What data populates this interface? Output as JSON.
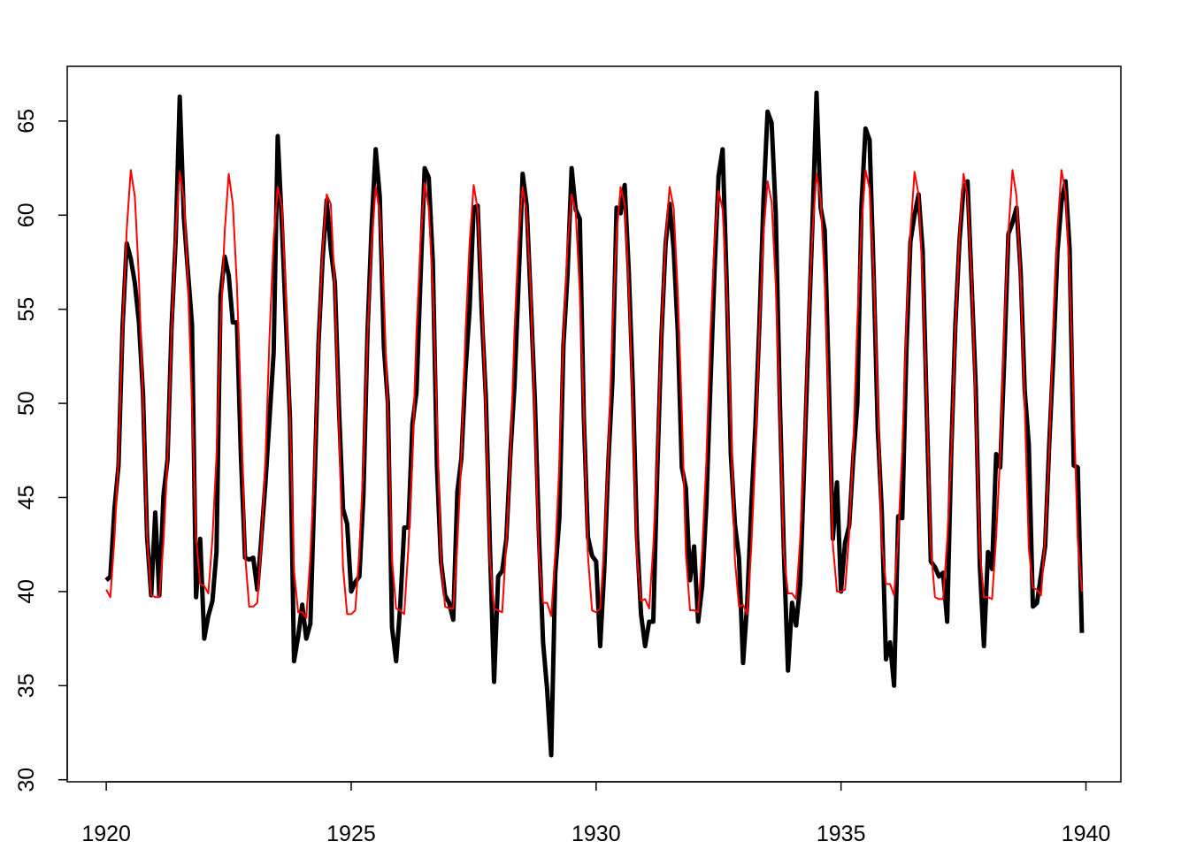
{
  "chart_data": {
    "type": "line",
    "x": [
      1920,
      1920.083,
      1920.167,
      1920.25,
      1920.333,
      1920.417,
      1920.5,
      1920.583,
      1920.667,
      1920.75,
      1920.833,
      1920.917,
      1921,
      1921.083,
      1921.167,
      1921.25,
      1921.333,
      1921.417,
      1921.5,
      1921.583,
      1921.667,
      1921.75,
      1921.833,
      1921.917,
      1922,
      1922.083,
      1922.167,
      1922.25,
      1922.333,
      1922.417,
      1922.5,
      1922.583,
      1922.667,
      1922.75,
      1922.833,
      1922.917,
      1923,
      1923.083,
      1923.167,
      1923.25,
      1923.333,
      1923.417,
      1923.5,
      1923.583,
      1923.667,
      1923.75,
      1923.833,
      1923.917,
      1924,
      1924.083,
      1924.167,
      1924.25,
      1924.333,
      1924.417,
      1924.5,
      1924.583,
      1924.667,
      1924.75,
      1924.833,
      1924.917,
      1925,
      1925.083,
      1925.167,
      1925.25,
      1925.333,
      1925.417,
      1925.5,
      1925.583,
      1925.667,
      1925.75,
      1925.833,
      1925.917,
      1926,
      1926.083,
      1926.167,
      1926.25,
      1926.333,
      1926.417,
      1926.5,
      1926.583,
      1926.667,
      1926.75,
      1926.833,
      1926.917,
      1927,
      1927.083,
      1927.167,
      1927.25,
      1927.333,
      1927.417,
      1927.5,
      1927.583,
      1927.667,
      1927.75,
      1927.833,
      1927.917,
      1928,
      1928.083,
      1928.167,
      1928.25,
      1928.333,
      1928.417,
      1928.5,
      1928.583,
      1928.667,
      1928.75,
      1928.833,
      1928.917,
      1929,
      1929.083,
      1929.167,
      1929.25,
      1929.333,
      1929.417,
      1929.5,
      1929.583,
      1929.667,
      1929.75,
      1929.833,
      1929.917,
      1930,
      1930.083,
      1930.167,
      1930.25,
      1930.333,
      1930.417,
      1930.5,
      1930.583,
      1930.667,
      1930.75,
      1930.833,
      1930.917,
      1931,
      1931.083,
      1931.167,
      1931.25,
      1931.333,
      1931.417,
      1931.5,
      1931.583,
      1931.667,
      1931.75,
      1931.833,
      1931.917,
      1932,
      1932.083,
      1932.167,
      1932.25,
      1932.333,
      1932.417,
      1932.5,
      1932.583,
      1932.667,
      1932.75,
      1932.833,
      1932.917,
      1933,
      1933.083,
      1933.167,
      1933.25,
      1933.333,
      1933.417,
      1933.5,
      1933.583,
      1933.667,
      1933.75,
      1933.833,
      1933.917,
      1934,
      1934.083,
      1934.167,
      1934.25,
      1934.333,
      1934.417,
      1934.5,
      1934.583,
      1934.667,
      1934.75,
      1934.833,
      1934.917,
      1935,
      1935.083,
      1935.167,
      1935.25,
      1935.333,
      1935.417,
      1935.5,
      1935.583,
      1935.667,
      1935.75,
      1935.833,
      1935.917,
      1936,
      1936.083,
      1936.167,
      1936.25,
      1936.333,
      1936.417,
      1936.5,
      1936.583,
      1936.667,
      1936.75,
      1936.833,
      1936.917,
      1937,
      1937.083,
      1937.167,
      1937.25,
      1937.333,
      1937.417,
      1937.5,
      1937.583,
      1937.667,
      1937.75,
      1937.833,
      1937.917,
      1938,
      1938.083,
      1938.167,
      1938.25,
      1938.333,
      1938.417,
      1938.5,
      1938.583,
      1938.667,
      1938.75,
      1938.833,
      1938.917,
      1939,
      1939.083,
      1939.167,
      1939.25,
      1939.333,
      1939.417,
      1939.5,
      1939.583,
      1939.667,
      1939.75,
      1939.833,
      1939.917
    ],
    "series": [
      {
        "color": "#000000",
        "width": 5,
        "values": [
          40.6,
          40.8,
          44.4,
          46.7,
          54.1,
          58.5,
          57.7,
          56.4,
          54.3,
          50.5,
          42.9,
          39.8,
          44.2,
          39.8,
          45.1,
          47.0,
          54.1,
          58.7,
          66.3,
          59.9,
          57.0,
          54.2,
          39.7,
          42.8,
          37.5,
          38.7,
          39.5,
          42.1,
          55.7,
          57.8,
          56.8,
          54.3,
          54.3,
          47.1,
          41.8,
          41.7,
          41.8,
          40.1,
          42.9,
          45.8,
          49.2,
          52.7,
          64.2,
          59.6,
          54.4,
          49.2,
          36.3,
          37.6,
          39.3,
          37.5,
          38.3,
          45.5,
          53.2,
          57.7,
          60.8,
          58.2,
          56.4,
          49.8,
          44.4,
          43.6,
          40.0,
          40.5,
          40.8,
          45.1,
          53.8,
          59.4,
          63.5,
          61.0,
          53.0,
          50.0,
          38.1,
          36.3,
          39.2,
          43.4,
          43.4,
          48.9,
          50.6,
          56.8,
          62.5,
          62.0,
          57.5,
          46.7,
          41.6,
          39.8,
          39.4,
          38.5,
          45.3,
          47.1,
          51.7,
          55.0,
          60.4,
          60.5,
          54.7,
          50.3,
          42.3,
          35.2,
          40.8,
          41.1,
          42.8,
          47.3,
          50.9,
          56.4,
          62.2,
          60.5,
          55.4,
          50.2,
          43.0,
          37.3,
          34.8,
          31.3,
          41.0,
          43.9,
          53.1,
          56.9,
          62.5,
          60.3,
          59.8,
          49.2,
          42.9,
          41.9,
          41.6,
          37.1,
          41.2,
          46.9,
          51.2,
          60.4,
          60.1,
          61.6,
          57.0,
          50.9,
          43.0,
          38.8,
          37.1,
          38.4,
          38.4,
          46.5,
          53.5,
          58.4,
          60.6,
          58.2,
          53.8,
          46.6,
          45.5,
          40.6,
          42.4,
          38.4,
          40.3,
          44.6,
          50.9,
          57.0,
          62.1,
          63.5,
          56.3,
          47.3,
          43.6,
          41.8,
          36.2,
          39.3,
          44.5,
          48.7,
          54.2,
          60.8,
          65.5,
          64.9,
          60.1,
          50.2,
          42.1,
          35.8,
          39.4,
          38.2,
          40.4,
          46.9,
          53.4,
          59.6,
          66.5,
          60.4,
          59.2,
          51.2,
          42.8,
          45.8,
          40.0,
          42.6,
          43.5,
          47.1,
          50.0,
          60.5,
          64.6,
          64.0,
          56.8,
          48.6,
          44.2,
          36.4,
          37.3,
          35.0,
          44.0,
          43.9,
          52.7,
          58.6,
          60.0,
          61.1,
          58.1,
          49.6,
          41.6,
          41.3,
          40.8,
          41.0,
          38.4,
          47.4,
          54.1,
          58.6,
          61.4,
          61.8,
          56.3,
          50.9,
          41.4,
          37.1,
          42.1,
          41.2,
          47.3,
          46.6,
          52.4,
          59.0,
          59.6,
          60.4,
          57.0,
          50.7,
          47.8,
          39.2,
          39.4,
          40.9,
          42.4,
          47.8,
          52.4,
          58.0,
          60.7,
          61.8,
          58.2,
          46.7,
          46.6,
          37.8
        ]
      },
      {
        "color": "#ff0000",
        "width": 2,
        "values": [
          40.1,
          39.7,
          42.8,
          47.2,
          54.0,
          59.2,
          62.4,
          61.0,
          56.6,
          50.1,
          42.9,
          39.8,
          39.7,
          39.7,
          42.6,
          47.0,
          53.8,
          59.0,
          62.3,
          60.9,
          56.5,
          49.9,
          42.9,
          40.4,
          40.3,
          39.9,
          42.8,
          47.2,
          54.0,
          59.1,
          62.2,
          60.6,
          56.3,
          49.8,
          42.0,
          39.2,
          39.2,
          39.4,
          42.6,
          47.0,
          53.6,
          58.7,
          61.5,
          60.5,
          55.7,
          49.3,
          41.1,
          38.9,
          38.9,
          38.6,
          41.9,
          46.6,
          53.2,
          58.1,
          61.1,
          60.6,
          56.0,
          48.9,
          41.3,
          38.8,
          38.8,
          39.0,
          42.1,
          46.8,
          53.6,
          58.4,
          61.5,
          60.1,
          55.7,
          49.3,
          41.7,
          39.1,
          39.0,
          38.8,
          42.3,
          47.1,
          53.8,
          58.6,
          61.7,
          60.4,
          56.1,
          49.3,
          41.6,
          39.2,
          39.1,
          39.1,
          42.5,
          47.2,
          53.7,
          58.5,
          61.6,
          60.3,
          55.8,
          49.5,
          41.7,
          39.1,
          39.0,
          38.9,
          42.6,
          47.1,
          53.8,
          58.7,
          61.5,
          60.1,
          55.9,
          49.1,
          41.8,
          39.4,
          39.4,
          38.7,
          42.0,
          46.8,
          53.5,
          58.4,
          61.1,
          60.2,
          55.9,
          49.5,
          41.9,
          39.0,
          38.9,
          39.1,
          42.5,
          47.2,
          53.9,
          58.9,
          61.5,
          60.6,
          56.2,
          49.6,
          41.9,
          39.5,
          39.6,
          39.1,
          42.4,
          47.2,
          53.7,
          58.6,
          61.5,
          60.4,
          55.9,
          49.6,
          42.0,
          39.0,
          39.0,
          38.9,
          42.2,
          46.9,
          53.6,
          58.6,
          61.3,
          60.3,
          55.9,
          49.3,
          41.7,
          39.2,
          39.3,
          38.8,
          42.3,
          47.2,
          54.0,
          59.0,
          61.8,
          60.7,
          56.3,
          49.6,
          42.0,
          39.9,
          39.9,
          39.6,
          42.8,
          47.5,
          54.2,
          59.1,
          62.2,
          60.9,
          56.5,
          49.9,
          42.5,
          40.0,
          40.0,
          40.1,
          43.1,
          47.7,
          54.3,
          59.4,
          62.4,
          61.4,
          56.9,
          50.2,
          42.6,
          40.4,
          40.4,
          39.8,
          43.0,
          47.4,
          54.0,
          59.1,
          62.3,
          61.1,
          56.6,
          49.9,
          42.4,
          39.7,
          39.6,
          39.6,
          42.7,
          47.2,
          53.9,
          58.9,
          62.2,
          61.0,
          56.6,
          49.8,
          42.2,
          39.7,
          39.7,
          39.6,
          42.9,
          47.3,
          54.0,
          59.1,
          62.4,
          61.0,
          56.6,
          49.9,
          42.3,
          40.2,
          40.1,
          39.8,
          42.9,
          47.4,
          54.1,
          59.2,
          62.4,
          61.2,
          56.8,
          49.8,
          42.7,
          40.0
        ]
      }
    ],
    "xlim": [
      1919.203,
      1940.713
    ],
    "ylim": [
      29.892,
      67.908
    ],
    "xticks": [
      1920,
      1925,
      1930,
      1935,
      1940
    ],
    "yticks": [
      30,
      35,
      40,
      45,
      50,
      55,
      60,
      65
    ]
  }
}
